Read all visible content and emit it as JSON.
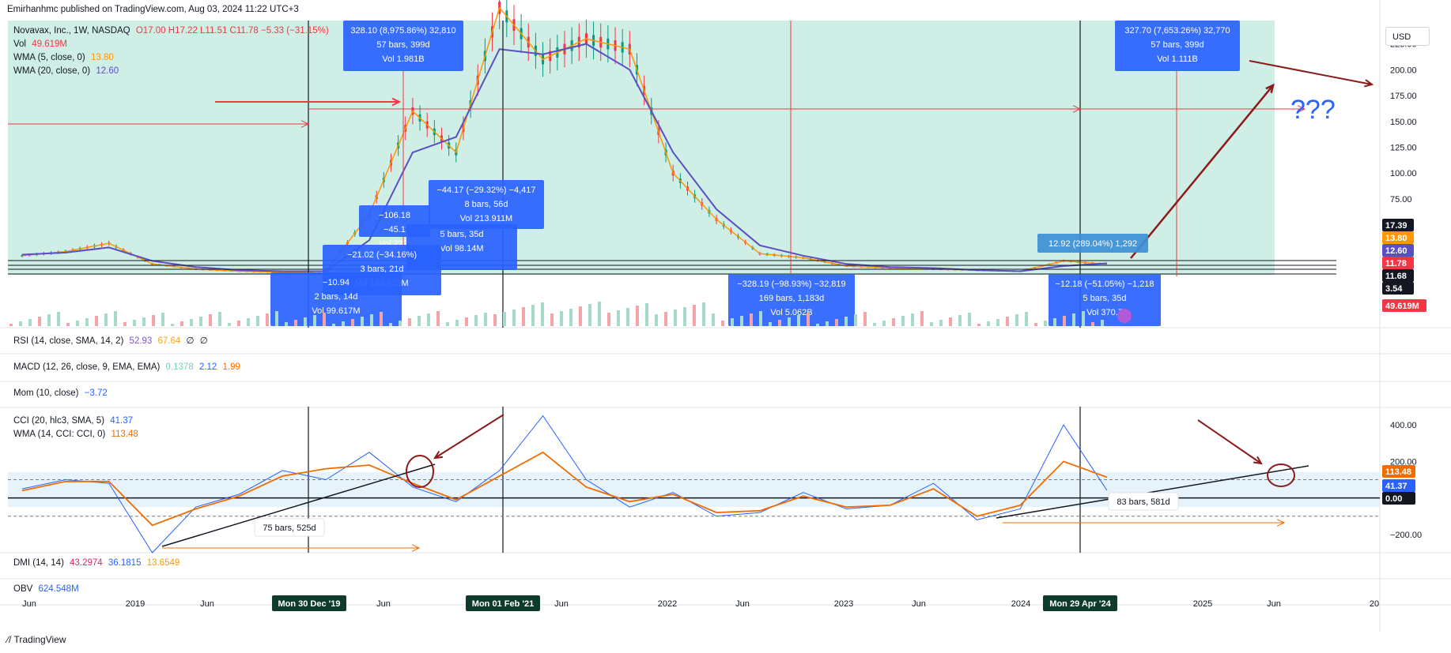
{
  "publisher": "Emirhanhmc published on TradingView.com, Aug 03, 2024 11:22 UTC+3",
  "main_legend": {
    "symbol": "Novavax, Inc., 1W, NASDAQ",
    "ohlc": "O17.00 H17.22 L11.51 C11.78 −5.33 (−31.15%)",
    "vol_label": "Vol",
    "vol_value": "49.619M",
    "wma5_label": "WMA (5, close, 0)",
    "wma5_value": "13.80",
    "wma20_label": "WMA (20, close, 0)",
    "wma20_value": "12.60"
  },
  "currency": "USD",
  "price_axis_ticks": [
    "225.00",
    "200.00",
    "175.00",
    "150.00",
    "125.00",
    "100.00",
    "75.00"
  ],
  "price_badges": [
    {
      "text": "17.39",
      "bg": "#131722"
    },
    {
      "text": "13.80",
      "bg": "#ff9800"
    },
    {
      "text": "12.60",
      "bg": "#5b4fc4"
    },
    {
      "text": "11.78",
      "bg": "#f23645"
    },
    {
      "text": "11.68",
      "bg": "#131722"
    },
    {
      "text": "3.54",
      "bg": "#131722"
    },
    {
      "text": "49.619M",
      "bg": "#f23645"
    }
  ],
  "measure_boxes": [
    {
      "lines": [
        "328.10 (8,975.86%) 32,810",
        "57 bars, 399d",
        "Vol 1.981B"
      ]
    },
    {
      "lines": [
        "327.70 (7,653.26%) 32,770",
        "57 bars, 399d",
        "Vol 1.111B"
      ]
    },
    {
      "lines": [
        "−44.17 (−29.32%) −4,417",
        "8 bars, 56d",
        "Vol 213.911M"
      ]
    },
    {
      "lines": [
        "−106.18",
        "−45.1",
        "Vol 232."
      ]
    },
    {
      "lines": [
        "5 bars, 35d",
        "Vol 98.14M"
      ]
    },
    {
      "lines": [
        "−21.02 (−34.16%)",
        "3 bars, 21d",
        "Vol 163.925M"
      ]
    },
    {
      "lines": [
        "−10.94",
        "2 bars, 14d",
        "Vol 99.617M"
      ]
    },
    {
      "lines": [
        "−328.19 (−98.93%) −32,819",
        "169 bars, 1,183d",
        "Vol 5.062B"
      ]
    },
    {
      "lines": [
        "12.92 (289.04%) 1,292"
      ]
    },
    {
      "lines": [
        "−12.18 (−51.05%) −1,218",
        "5 bars, 35d",
        "Vol 370.7"
      ]
    }
  ],
  "question_marks": "???",
  "indicators": {
    "rsi": {
      "label": "RSI (14, close, SMA, 14, 2)",
      "v1": "52.93",
      "v2": "67.64",
      "v3": "∅",
      "v4": "∅"
    },
    "macd": {
      "label": "MACD (12, 26, close, 9, EMA, EMA)",
      "v1": "0.1378",
      "v2": "2.12",
      "v3": "1.99"
    },
    "mom": {
      "label": "Mom (10, close)",
      "v1": "−3.72"
    },
    "cci": {
      "label": "CCI (20, hlc3, SMA, 5)",
      "v1": "41.37"
    },
    "wma_cci": {
      "label": "WMA (14, CCI: CCI, 0)",
      "v1": "113.48"
    },
    "dmi": {
      "label": "DMI (14, 14)",
      "v1": "43.2974",
      "v2": "36.1815",
      "v3": "13.6549"
    },
    "obv": {
      "label": "OBV",
      "v1": "624.548M"
    }
  },
  "cci_axis_ticks": [
    "400.00",
    "200.00",
    "−200.00"
  ],
  "cci_badges": [
    {
      "text": "113.48",
      "bg": "#ef6c00"
    },
    {
      "text": "41.37",
      "bg": "#2962ff"
    },
    {
      "text": "0.00",
      "bg": "#131722"
    }
  ],
  "cci_notes": [
    "75 bars, 525d",
    "83 bars, 581d"
  ],
  "time_axis": [
    "Jun",
    "2019",
    "Jun",
    "Mon 30 Dec '19",
    "Jun",
    "Mon 01 Feb '21",
    "Jun",
    "2022",
    "Jun",
    "2023",
    "Jun",
    "2024",
    "Mon 29 Apr '24",
    "2025",
    "Jun",
    "20"
  ],
  "footer": "TradingView",
  "chart_data": {
    "type": "line",
    "title": "Novavax, Inc., 1W, NASDAQ",
    "x": [
      "2018-05",
      "2018-08",
      "2018-11",
      "2019-02",
      "2019-05",
      "2019-08",
      "2019-11",
      "2020-02",
      "2020-05",
      "2020-08",
      "2020-11",
      "2021-02",
      "2021-05",
      "2021-08",
      "2021-11",
      "2022-02",
      "2022-05",
      "2022-08",
      "2022-11",
      "2023-02",
      "2023-05",
      "2023-08",
      "2023-11",
      "2024-02",
      "2024-05",
      "2024-08"
    ],
    "series": [
      {
        "name": "Close",
        "values": [
          20,
          24,
          32,
          12,
          7,
          5,
          4,
          5,
          60,
          160,
          120,
          260,
          210,
          230,
          220,
          100,
          55,
          22,
          18,
          10,
          8,
          7,
          6,
          5,
          15,
          11.78
        ]
      },
      {
        "name": "WMA (20, close, 0)",
        "values": [
          21,
          23,
          28,
          15,
          9,
          6,
          5,
          5,
          35,
          120,
          135,
          220,
          215,
          225,
          200,
          120,
          65,
          30,
          20,
          12,
          9,
          8,
          6,
          5,
          10,
          12.6
        ]
      }
    ],
    "ylim": [
      0,
      240
    ],
    "cci": {
      "name": "CCI (20, hlc3, SMA, 5)",
      "values": [
        50,
        100,
        80,
        -300,
        -50,
        20,
        150,
        100,
        250,
        60,
        -20,
        150,
        450,
        100,
        -50,
        30,
        -100,
        -80,
        30,
        -60,
        -40,
        80,
        -120,
        -60,
        400,
        41.37
      ]
    },
    "cci_wma": {
      "name": "WMA (14, CCI: CCI, 0)",
      "values": [
        40,
        90,
        90,
        -150,
        -60,
        10,
        120,
        160,
        180,
        80,
        -10,
        120,
        250,
        60,
        -20,
        20,
        -80,
        -70,
        10,
        -50,
        -40,
        50,
        -100,
        -40,
        200,
        113.48
      ]
    },
    "cci_ylim": [
      -300,
      500
    ]
  }
}
